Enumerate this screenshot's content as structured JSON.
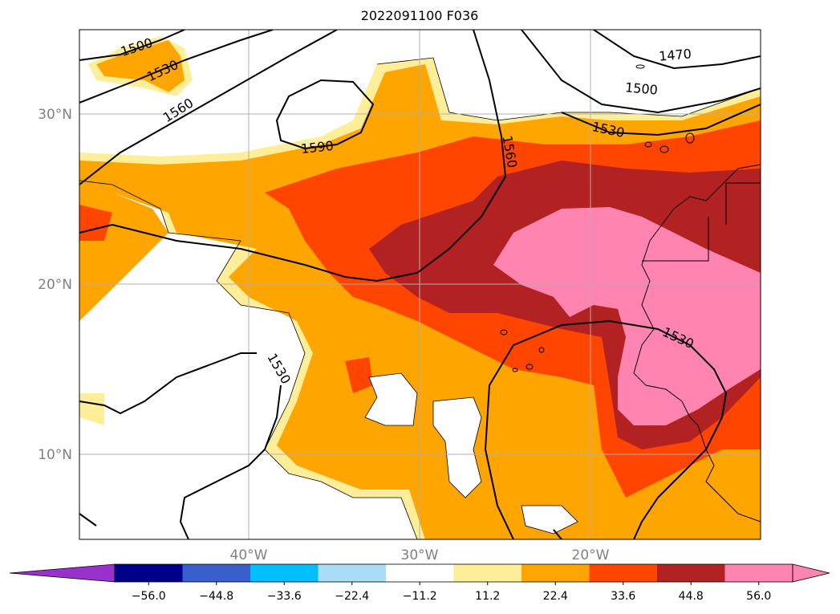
{
  "title": "2022091100 F036",
  "map": {
    "lon_range": [
      -50,
      -10
    ],
    "lat_range": [
      5,
      35
    ],
    "gridlines": true,
    "lat_labels": [
      "30°N",
      "20°N",
      "10°N"
    ],
    "lon_labels": [
      "40°W",
      "30°W",
      "20°W"
    ],
    "contour_labels": [
      "1500",
      "1530",
      "1560",
      "1590",
      "1560",
      "1470",
      "1500",
      "1530",
      "1530",
      "1530"
    ]
  },
  "colorbar": {
    "ticks": [
      "−56.0",
      "−44.8",
      "−33.6",
      "−22.4",
      "−11.2",
      "11.2",
      "22.4",
      "33.6",
      "44.8",
      "56.0"
    ],
    "colors": [
      "#9932cc",
      "#00008b",
      "#3a5fcd",
      "#00bfff",
      "#aadcf8",
      "#ffffff",
      "#ffee99",
      "#ffa500",
      "#ff4500",
      "#b22222",
      "#ff85b0",
      "#ff85b0"
    ],
    "extend": "both"
  },
  "fill_colors": {
    "level_11": "#ffee99",
    "level_22": "#ffa500",
    "level_33": "#ff4500",
    "level_44": "#b22222",
    "level_56": "#ff85b0"
  }
}
